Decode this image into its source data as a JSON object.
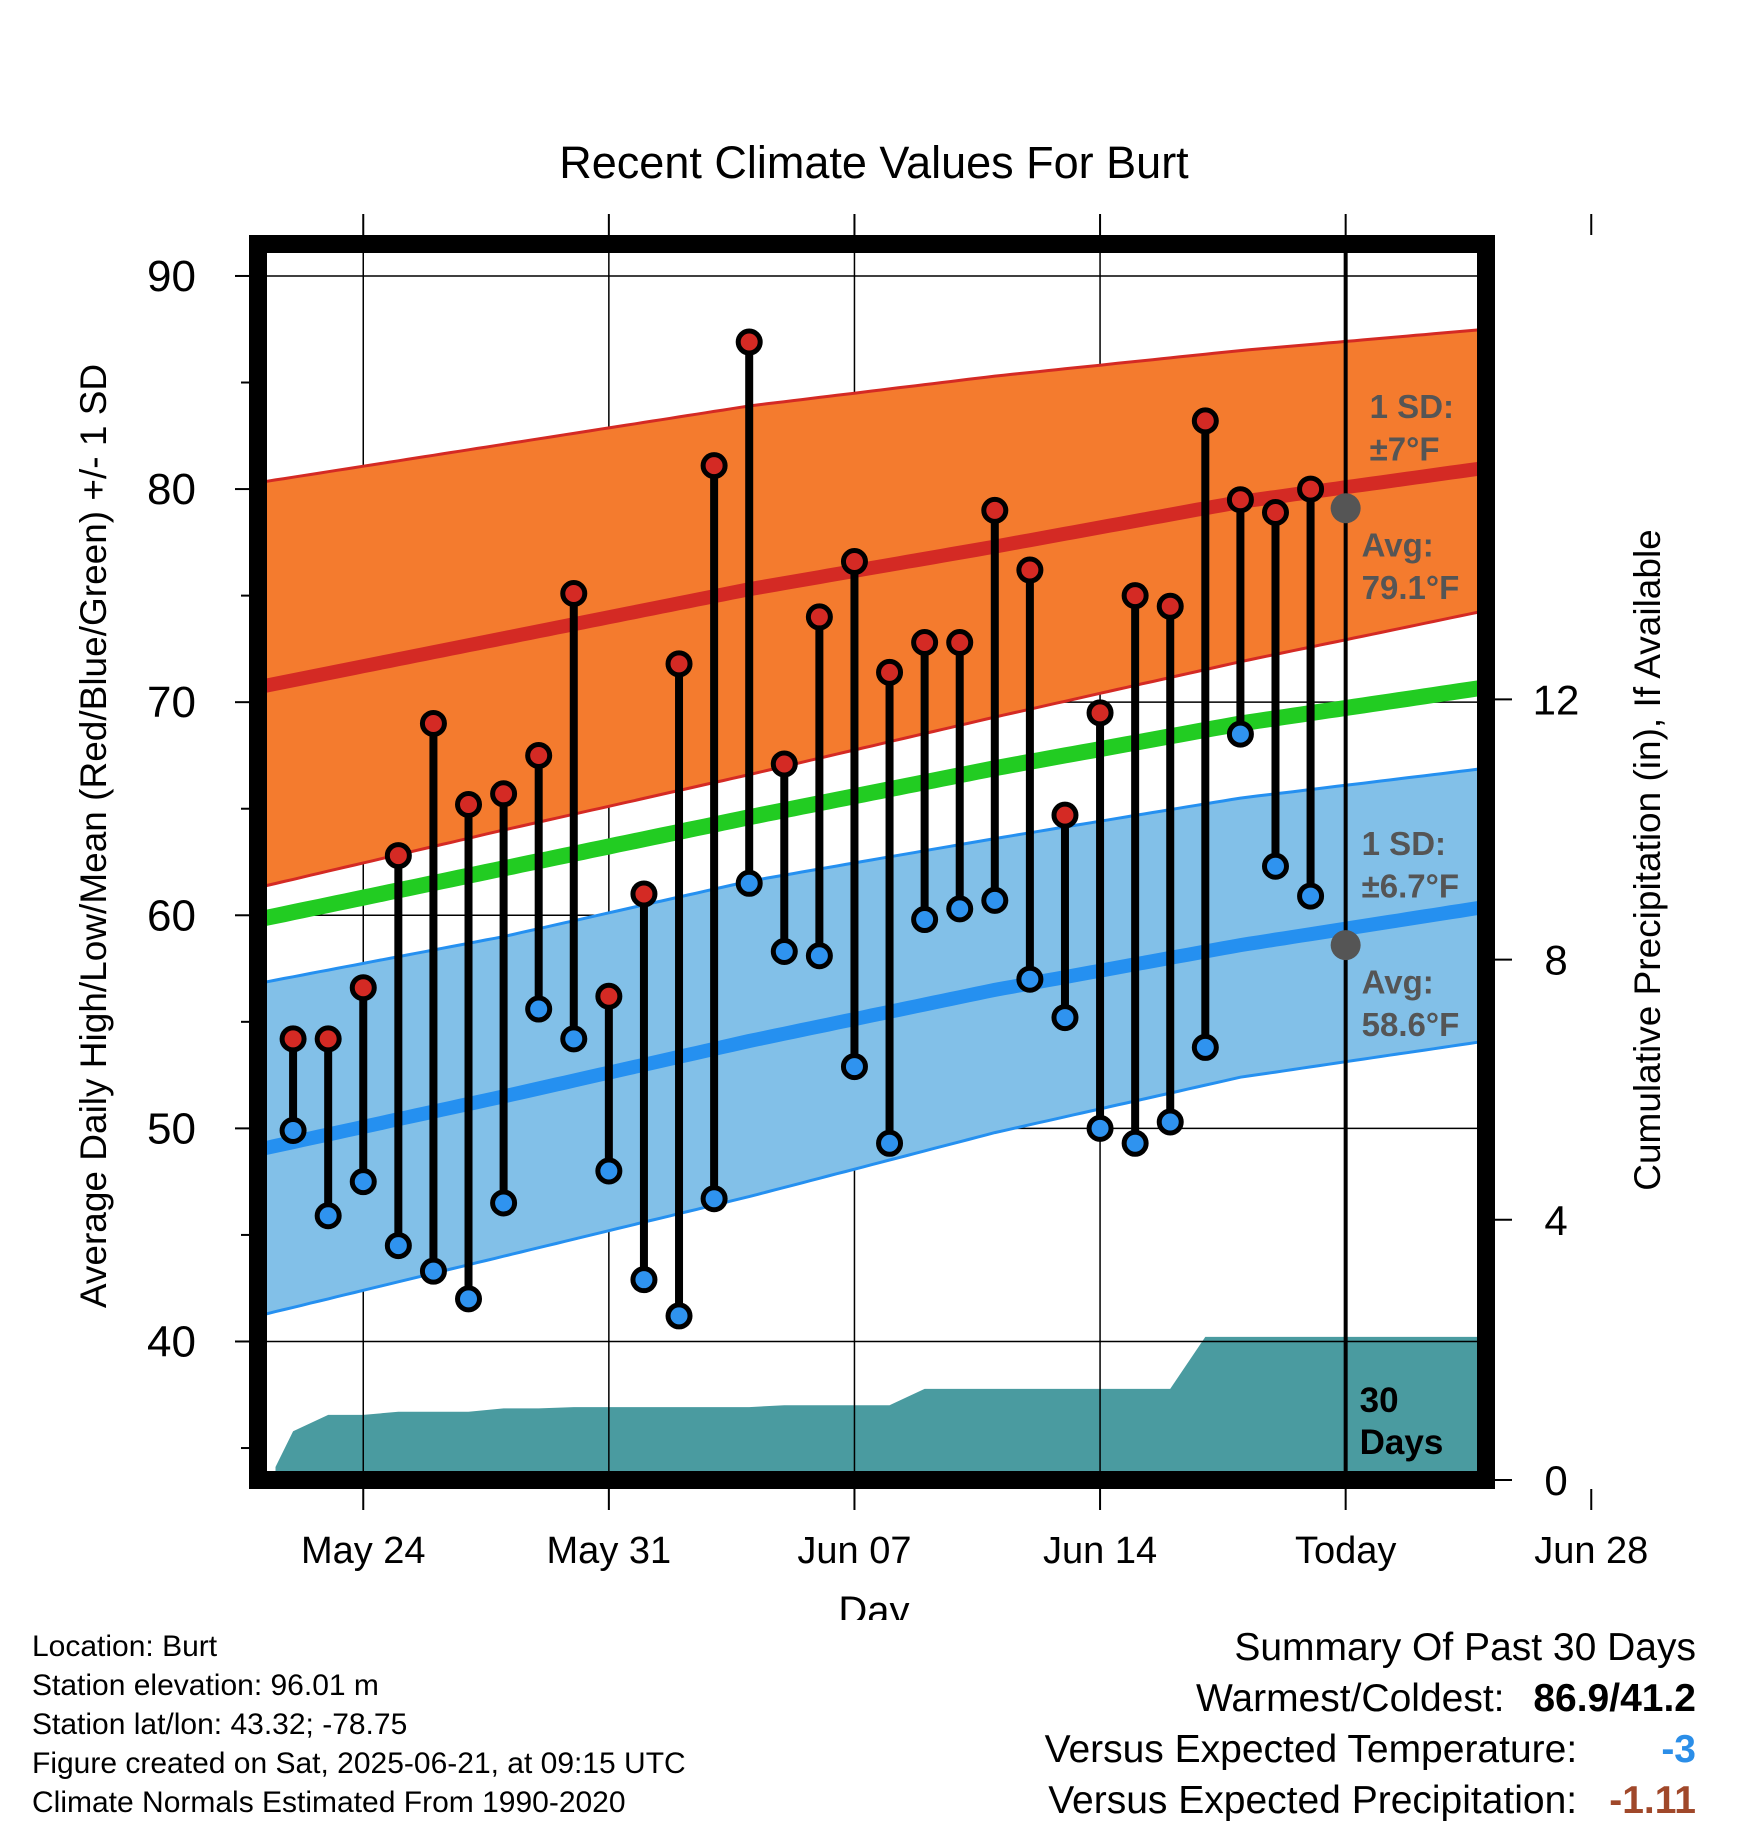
{
  "chart_data": {
    "type": "line",
    "title": "Recent Climate Values For Burt",
    "xlabel": "Day",
    "ylabel": "Average Daily High/Low/Mean (Red/Blue/Green) +/- 1 SD",
    "y2label": "Cumulative Precipitation (in), If Available",
    "ylim": [
      33.5,
      91.5
    ],
    "y2lim": [
      0,
      19
    ],
    "yticks": [
      40,
      50,
      60,
      70,
      80,
      90
    ],
    "y2ticks": [
      0,
      4,
      8,
      12
    ],
    "x_range_day_index": [
      -23,
      12
    ],
    "xticks": [
      {
        "day_index": -20,
        "label": "May 24"
      },
      {
        "day_index": -13,
        "label": "May 31"
      },
      {
        "day_index": -6,
        "label": "Jun 07"
      },
      {
        "day_index": 1,
        "label": "Jun 14"
      },
      {
        "day_index": 8,
        "label": "Today"
      },
      {
        "day_index": 15,
        "label": "Jun 28"
      }
    ],
    "grid": true,
    "today_day_index": 8,
    "period_label": "30 Days",
    "colors": {
      "high_band": "#f47b2e",
      "high_mean": "#d42a24",
      "low_band": "#82c0e8",
      "low_mean": "#2590f0",
      "mean": "#22cc22",
      "precip": "#4a9ba0",
      "high_marker": "#d42a24",
      "low_marker": "#2f93ef",
      "today_marker": "#555555"
    },
    "normal_high": {
      "day_index": [
        -23,
        -16,
        -9,
        -2,
        5,
        12
      ],
      "mean": [
        70.7,
        73.0,
        75.3,
        77.3,
        79.4,
        81.0
      ],
      "upper": [
        80.3,
        82.1,
        83.9,
        85.3,
        86.5,
        87.5
      ],
      "lower": [
        61.3,
        64.0,
        66.6,
        69.3,
        71.9,
        74.3
      ]
    },
    "normal_low": {
      "day_index": [
        -23,
        -16,
        -9,
        -2,
        5,
        12
      ],
      "mean": [
        49.0,
        51.5,
        54.1,
        56.5,
        58.6,
        60.4
      ],
      "upper": [
        56.8,
        59.0,
        61.6,
        63.6,
        65.5,
        66.9
      ],
      "lower": [
        41.2,
        44.0,
        46.8,
        49.8,
        52.4,
        54.1
      ]
    },
    "normal_mean": {
      "day_index": [
        -23,
        -16,
        -9,
        -2,
        5,
        12
      ],
      "values": [
        59.8,
        62.2,
        64.6,
        66.9,
        69.0,
        70.7
      ]
    },
    "today_annotation": {
      "high_sd_label": "1 SD:",
      "high_sd_value": "±7°F",
      "high_avg_label": "Avg:",
      "high_avg_value": "79.1°F",
      "high_avg": 79.1,
      "low_sd_label": "1 SD:",
      "low_sd_value": "±6.7°F",
      "low_avg_label": "Avg:",
      "low_avg_value": "58.6°F",
      "low_avg": 58.6
    },
    "observed": {
      "day_index": [
        -22,
        -21,
        -20,
        -19,
        -18,
        -17,
        -16,
        -15,
        -14,
        -13,
        -12,
        -11,
        -10,
        -9,
        -8,
        -7,
        -6,
        -5,
        -4,
        -3,
        -2,
        -1,
        0,
        1,
        2,
        3,
        4,
        5,
        6,
        7
      ],
      "high": [
        54.2,
        54.2,
        56.6,
        62.8,
        69.0,
        65.2,
        65.7,
        67.5,
        75.1,
        56.2,
        61.0,
        71.8,
        81.1,
        86.9,
        67.1,
        74.0,
        76.6,
        71.4,
        72.8,
        72.8,
        79.0,
        76.2,
        64.7,
        69.5,
        75.0,
        74.5,
        83.2,
        79.5,
        78.9,
        80.0
      ],
      "low": [
        49.9,
        45.9,
        47.5,
        44.5,
        43.3,
        42.0,
        46.5,
        55.6,
        54.2,
        48.0,
        42.9,
        41.2,
        46.7,
        61.5,
        58.3,
        58.1,
        52.9,
        49.3,
        59.8,
        60.3,
        60.7,
        57.0,
        55.2,
        50.0,
        49.3,
        50.3,
        53.8,
        68.5,
        62.3,
        60.9
      ]
    },
    "precip_cumulative": {
      "day_index": [
        -22.5,
        -22,
        -21,
        -20,
        -19,
        -18,
        -17,
        -16,
        -15,
        -14,
        -13,
        -12,
        -11,
        -10,
        -9,
        -8,
        -7,
        -6,
        -5,
        -4,
        -3,
        -2,
        -1,
        0,
        1,
        2,
        3,
        4,
        5,
        6,
        7,
        8,
        12
      ],
      "values": [
        0.2,
        0.75,
        1.0,
        1.0,
        1.05,
        1.05,
        1.05,
        1.1,
        1.1,
        1.12,
        1.12,
        1.12,
        1.12,
        1.12,
        1.12,
        1.15,
        1.15,
        1.15,
        1.15,
        1.4,
        1.4,
        1.4,
        1.4,
        1.4,
        1.4,
        1.4,
        1.4,
        2.2,
        2.2,
        2.2,
        2.2,
        2.2,
        2.2
      ]
    }
  },
  "footer": {
    "location": "Location: Burt",
    "elevation": "Station elevation: 96.01 m",
    "latlon": "Station lat/lon: 43.32; -78.75",
    "created": "Figure created on Sat, 2025-06-21, at 09:15 UTC",
    "normals": "Climate Normals Estimated From 1990-2020"
  },
  "summary": {
    "heading": "Summary Of Past 30 Days",
    "warmest_label": "Warmest/Coldest:",
    "warmest_value": "86.9/41.2",
    "temp_label": "Versus Expected Temperature:",
    "temp_value": "-3",
    "temp_color": "#2b8ee8",
    "precip_label": "Versus Expected Precipitation:",
    "precip_value": "-1.11",
    "precip_color": "#a0482a"
  }
}
